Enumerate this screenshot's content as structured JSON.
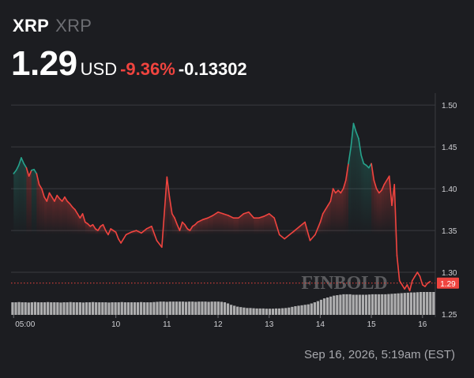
{
  "header": {
    "symbol": "XRP",
    "name": "XRP",
    "price": "1.29",
    "currency": "USD",
    "change_pct": "-9.36%",
    "change_abs": "-0.13302"
  },
  "footer": {
    "timestamp": "Sep 16, 2026, 5:19am (EST)"
  },
  "watermark": "FINBOLD",
  "colors": {
    "background": "#1c1d21",
    "up": "#26a38c",
    "down": "#f0443f",
    "grid": "#3a3b40",
    "volume": "#c8c8c8"
  },
  "chart_data": {
    "type": "line",
    "xlabel": "",
    "ylabel": "",
    "ylim": [
      1.25,
      1.52
    ],
    "y_ticks": [
      "1.50",
      "1.45",
      "1.40",
      "1.35",
      "1.30",
      "1.25"
    ],
    "y_tick_values": [
      1.5,
      1.45,
      1.4,
      1.35,
      1.3,
      1.25
    ],
    "x_ticks": [
      "05:00",
      "10",
      "11",
      "12",
      "13",
      "14",
      "15",
      "16"
    ],
    "x_tick_values": [
      0,
      2,
      3,
      4,
      5,
      6,
      7,
      8
    ],
    "xlim": [
      -0.05,
      8.25
    ],
    "current_price_label": "1.29",
    "current_price": 1.287,
    "x": [
      0,
      0.05,
      0.1,
      0.15,
      0.2,
      0.25,
      0.3,
      0.35,
      0.4,
      0.45,
      0.5,
      0.55,
      0.6,
      0.65,
      0.7,
      0.75,
      0.8,
      0.85,
      0.9,
      0.95,
      1.0,
      1.05,
      1.1,
      1.15,
      1.2,
      1.25,
      1.3,
      1.35,
      1.4,
      1.45,
      1.5,
      1.55,
      1.6,
      1.65,
      1.7,
      1.75,
      1.8,
      1.85,
      1.9,
      1.95,
      2.0,
      2.05,
      2.1,
      2.15,
      2.2,
      2.3,
      2.4,
      2.5,
      2.6,
      2.7,
      2.8,
      2.9,
      3.0,
      3.05,
      3.1,
      3.15,
      3.2,
      3.25,
      3.3,
      3.35,
      3.4,
      3.45,
      3.5,
      3.55,
      3.6,
      3.7,
      3.8,
      3.9,
      4.0,
      4.1,
      4.2,
      4.3,
      4.4,
      4.5,
      4.6,
      4.7,
      4.8,
      4.9,
      5.0,
      5.1,
      5.2,
      5.3,
      5.4,
      5.5,
      5.6,
      5.7,
      5.8,
      5.9,
      6.0,
      6.05,
      6.1,
      6.15,
      6.2,
      6.25,
      6.3,
      6.35,
      6.4,
      6.45,
      6.5,
      6.55,
      6.6,
      6.65,
      6.7,
      6.75,
      6.8,
      6.85,
      6.9,
      6.95,
      7.0,
      7.05,
      7.1,
      7.15,
      7.2,
      7.25,
      7.3,
      7.35,
      7.4,
      7.45,
      7.5,
      7.55,
      7.6,
      7.65,
      7.7,
      7.75,
      7.8,
      7.85,
      7.9,
      7.95,
      8.0,
      8.05,
      8.1,
      8.15
    ],
    "y": [
      1.418,
      1.422,
      1.428,
      1.437,
      1.43,
      1.425,
      1.415,
      1.422,
      1.423,
      1.418,
      1.405,
      1.4,
      1.39,
      1.385,
      1.395,
      1.39,
      1.385,
      1.392,
      1.388,
      1.385,
      1.39,
      1.385,
      1.382,
      1.378,
      1.375,
      1.37,
      1.365,
      1.37,
      1.36,
      1.358,
      1.355,
      1.357,
      1.352,
      1.35,
      1.355,
      1.357,
      1.35,
      1.345,
      1.352,
      1.35,
      1.348,
      1.34,
      1.335,
      1.34,
      1.345,
      1.348,
      1.35,
      1.347,
      1.352,
      1.355,
      1.338,
      1.33,
      1.414,
      1.39,
      1.37,
      1.365,
      1.357,
      1.35,
      1.36,
      1.357,
      1.352,
      1.35,
      1.355,
      1.357,
      1.36,
      1.363,
      1.365,
      1.368,
      1.372,
      1.37,
      1.368,
      1.365,
      1.365,
      1.37,
      1.372,
      1.365,
      1.365,
      1.367,
      1.37,
      1.365,
      1.345,
      1.34,
      1.345,
      1.35,
      1.355,
      1.36,
      1.338,
      1.345,
      1.36,
      1.37,
      1.375,
      1.38,
      1.385,
      1.4,
      1.395,
      1.398,
      1.395,
      1.4,
      1.41,
      1.43,
      1.45,
      1.478,
      1.468,
      1.46,
      1.44,
      1.43,
      1.428,
      1.425,
      1.43,
      1.41,
      1.4,
      1.395,
      1.398,
      1.405,
      1.41,
      1.415,
      1.38,
      1.405,
      1.32,
      1.29,
      1.285,
      1.28,
      1.285,
      1.278,
      1.29,
      1.295,
      1.3,
      1.295,
      1.285,
      1.283,
      1.287,
      1.289
    ],
    "volume": [
      0.55,
      0.55,
      0.56,
      0.55,
      0.55,
      0.54,
      0.55,
      0.56,
      0.55,
      0.55,
      0.55,
      0.56,
      0.55,
      0.55,
      0.55,
      0.54,
      0.55,
      0.55,
      0.56,
      0.55,
      0.55,
      0.55,
      0.54,
      0.55,
      0.55,
      0.56,
      0.55,
      0.55,
      0.55,
      0.55,
      0.54,
      0.55,
      0.55,
      0.55,
      0.56,
      0.55,
      0.55,
      0.55,
      0.55,
      0.55,
      0.56,
      0.55,
      0.55,
      0.55,
      0.56,
      0.57,
      0.58,
      0.58,
      0.57,
      0.58,
      0.58,
      0.58,
      0.58,
      0.58,
      0.57,
      0.58,
      0.58,
      0.57,
      0.58,
      0.58,
      0.58,
      0.57,
      0.58,
      0.58,
      0.58,
      0.57,
      0.55,
      0.5,
      0.44,
      0.4,
      0.36,
      0.34,
      0.32,
      0.3,
      0.3,
      0.29,
      0.28,
      0.28,
      0.28,
      0.27,
      0.27,
      0.27,
      0.28,
      0.28,
      0.29,
      0.3,
      0.32,
      0.35,
      0.38,
      0.4,
      0.42,
      0.44,
      0.46,
      0.5,
      0.55,
      0.6,
      0.66,
      0.72,
      0.76,
      0.8,
      0.84,
      0.86,
      0.88,
      0.9,
      0.9,
      0.9,
      0.88,
      0.88,
      0.88,
      0.88,
      0.88,
      0.89,
      0.9,
      0.9,
      0.9,
      0.9,
      0.9,
      0.91,
      0.92,
      0.93,
      0.94,
      0.95,
      0.96,
      0.97,
      0.98,
      0.98,
      0.99,
      1.0,
      1.0,
      1.0,
      1.0,
      1.0
    ]
  }
}
